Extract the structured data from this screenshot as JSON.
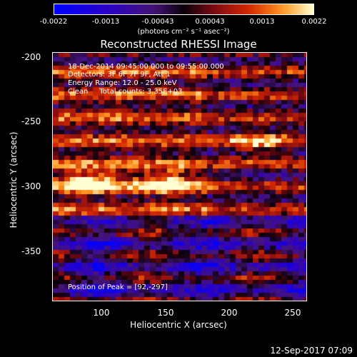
{
  "colorbar": {
    "ticks": [
      "-0.0022",
      "-0.0013",
      "-0.00043",
      "0.00043",
      "0.0013",
      "0.0022"
    ],
    "units": "(photons cm⁻² s⁻¹ asec⁻²)"
  },
  "plot": {
    "title": "Reconstructed RHESSI Image",
    "annotations": {
      "time_range": "18-Dec-2014 09:45:00.000 to 09:55:00.000",
      "detectors": "Detectors: 3F 6F 7F 9F, Att 1",
      "energy_range": "Energy Range: 12.0 - 25.0 keV",
      "method": "Clean     Total counts: 3.35E+03",
      "peak": "Position of Peak = [92,-297]"
    },
    "xlabel": "Heliocentric X (arcsec)",
    "ylabel": "Heliocentric Y (arcsec)",
    "xticks": [
      "100",
      "150",
      "200",
      "250"
    ],
    "yticks": [
      "-200",
      "-250",
      "-300",
      "-350"
    ]
  },
  "footer": {
    "date": "12-Sep-2017 07:09"
  },
  "chart_data": {
    "type": "heatmap",
    "title": "Reconstructed RHESSI Image",
    "xlabel": "Heliocentric X (arcsec)",
    "ylabel": "Heliocentric Y (arcsec)",
    "xlim": [
      64,
      254
    ],
    "ylim": [
      -390,
      -196
    ],
    "colorbar_range": [
      -0.0022,
      0.0022
    ],
    "peak": [
      92,
      -297
    ],
    "bright_sources": [
      {
        "x": 92,
        "y": -297
      },
      {
        "x": 150,
        "y": -297
      },
      {
        "x": 218,
        "y": -265
      }
    ]
  }
}
